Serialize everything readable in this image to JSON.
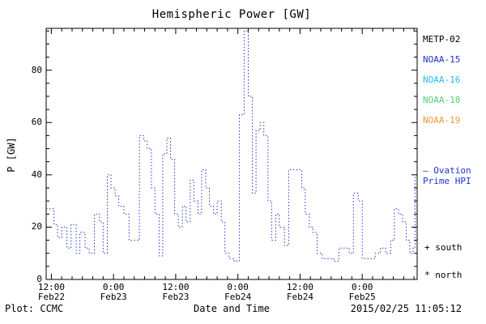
{
  "title": "Hemispheric Power [GW]",
  "axes": {
    "ylabel": "P [GW]",
    "xlabel": "Date and Time",
    "y_ticks": [
      0,
      20,
      40,
      60,
      80
    ],
    "x_ticks": [
      {
        "h": 12,
        "time": "12:00",
        "date": "Feb22"
      },
      {
        "h": 24,
        "time": "0:00",
        "date": "Feb23"
      },
      {
        "h": 36,
        "time": "12:00",
        "date": "Feb23"
      },
      {
        "h": 48,
        "time": "0:00",
        "date": "Feb24"
      },
      {
        "h": 60,
        "time": "12:00",
        "date": "Feb24"
      },
      {
        "h": 72,
        "time": "0:00",
        "date": "Feb25"
      }
    ]
  },
  "footer": {
    "left": "Plot: CCMC",
    "right": "2015/02/25 11:05:12"
  },
  "legend": {
    "satellites": [
      {
        "label": "METP-02",
        "color": "#000000"
      },
      {
        "label": "NOAA-15",
        "color": "#2233cc"
      },
      {
        "label": "NOAA-16",
        "color": "#22bbee"
      },
      {
        "label": "NOAA-18",
        "color": "#55cc77"
      },
      {
        "label": "NOAA-19",
        "color": "#ee9933"
      }
    ],
    "series_label_line1": "– Ovation",
    "series_label_line2": "Prime HPI",
    "series_label_color": "#2233cc",
    "south_marker": "+ south",
    "north_marker": "* north"
  },
  "chart_data": {
    "type": "line",
    "style": "dotted-step",
    "title": "Hemispheric Power [GW]",
    "xlabel": "Date and Time",
    "ylabel": "P [GW]",
    "line_color": "#2233cc",
    "x_unit": "hours since 2015-02-22 00:00",
    "xlim": [
      11,
      82.6
    ],
    "ylim": [
      0,
      96
    ],
    "t_end": 82.6,
    "steps": [
      [
        11.0,
        27
      ],
      [
        12.5,
        21
      ],
      [
        13.2,
        16
      ],
      [
        14.0,
        20
      ],
      [
        15.0,
        12
      ],
      [
        15.8,
        21
      ],
      [
        16.8,
        10
      ],
      [
        17.5,
        18
      ],
      [
        18.5,
        12
      ],
      [
        19.3,
        10
      ],
      [
        20.3,
        25
      ],
      [
        21.3,
        22
      ],
      [
        22.0,
        10
      ],
      [
        22.8,
        40
      ],
      [
        23.5,
        35
      ],
      [
        24.3,
        32
      ],
      [
        25.0,
        28
      ],
      [
        26.0,
        25
      ],
      [
        27.0,
        15
      ],
      [
        28.2,
        15
      ],
      [
        29.0,
        55
      ],
      [
        29.8,
        53
      ],
      [
        30.5,
        50
      ],
      [
        31.3,
        35
      ],
      [
        32.0,
        25
      ],
      [
        32.8,
        9
      ],
      [
        33.5,
        48
      ],
      [
        34.3,
        54
      ],
      [
        35.0,
        46
      ],
      [
        35.8,
        25
      ],
      [
        36.5,
        20
      ],
      [
        37.3,
        28
      ],
      [
        38.0,
        22
      ],
      [
        38.8,
        38
      ],
      [
        39.5,
        30
      ],
      [
        40.3,
        25
      ],
      [
        41.0,
        42
      ],
      [
        41.8,
        35
      ],
      [
        42.5,
        28
      ],
      [
        43.3,
        25
      ],
      [
        44.0,
        30
      ],
      [
        44.8,
        22
      ],
      [
        45.5,
        10
      ],
      [
        46.3,
        8
      ],
      [
        47.3,
        7
      ],
      [
        48.3,
        63
      ],
      [
        49.2,
        95
      ],
      [
        50.0,
        70
      ],
      [
        50.8,
        33
      ],
      [
        51.5,
        57
      ],
      [
        52.3,
        60
      ],
      [
        53.0,
        55
      ],
      [
        53.8,
        30
      ],
      [
        54.5,
        15
      ],
      [
        55.3,
        25
      ],
      [
        56.0,
        20
      ],
      [
        57.0,
        13
      ],
      [
        57.8,
        42
      ],
      [
        59.2,
        42
      ],
      [
        60.3,
        35
      ],
      [
        61.0,
        25
      ],
      [
        61.8,
        20
      ],
      [
        62.5,
        18
      ],
      [
        63.3,
        10
      ],
      [
        64.3,
        8
      ],
      [
        65.5,
        8
      ],
      [
        66.5,
        7
      ],
      [
        67.5,
        12
      ],
      [
        68.5,
        12
      ],
      [
        69.5,
        10
      ],
      [
        70.3,
        33
      ],
      [
        71.2,
        30
      ],
      [
        72.0,
        8
      ],
      [
        73.5,
        8
      ],
      [
        74.5,
        10
      ],
      [
        75.5,
        12
      ],
      [
        76.5,
        10
      ],
      [
        77.5,
        15
      ],
      [
        78.2,
        27
      ],
      [
        79.0,
        25
      ],
      [
        79.8,
        22
      ],
      [
        80.5,
        15
      ],
      [
        81.2,
        10
      ],
      [
        81.8,
        12
      ],
      [
        82.2,
        40
      ]
    ]
  }
}
